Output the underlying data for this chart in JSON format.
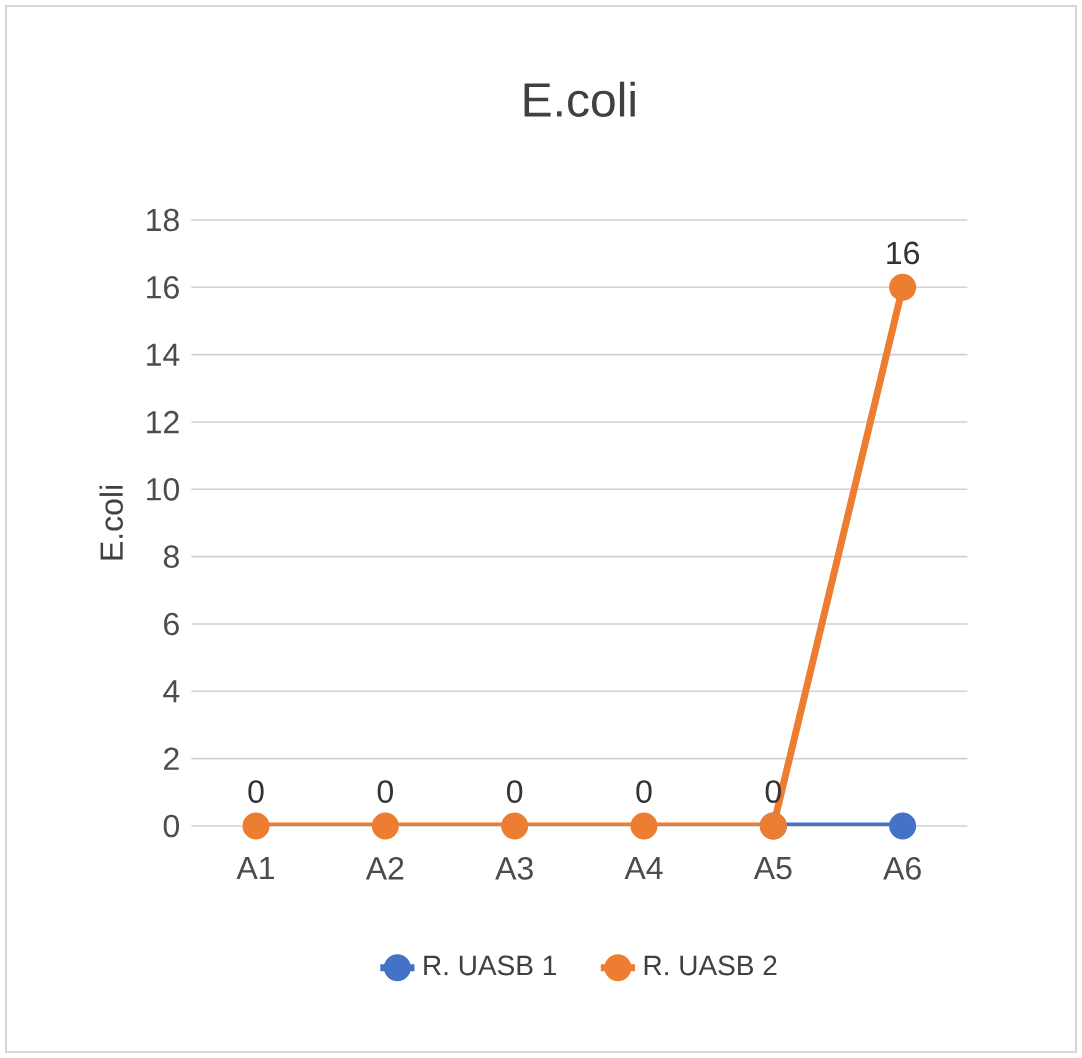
{
  "chart_data": {
    "type": "line",
    "title": "E.coli",
    "ylabel": "E.coli",
    "categories": [
      "A1",
      "A2",
      "A3",
      "A4",
      "A5",
      "A6"
    ],
    "series": [
      {
        "name": "R. UASB 1",
        "color": "#4472c4",
        "values": [
          null,
          null,
          null,
          null,
          0,
          0
        ]
      },
      {
        "name": "R. UASB 2",
        "color": "#ed7d31",
        "values": [
          0,
          0,
          0,
          0,
          0,
          16
        ],
        "value_labels": [
          "0",
          "0",
          "0",
          "0",
          "0",
          "16"
        ]
      }
    ],
    "ylim": [
      0,
      18
    ],
    "yticks": [
      0,
      2,
      4,
      6,
      8,
      10,
      12,
      14,
      16,
      18
    ],
    "grid": "y",
    "legend": "bottom",
    "marker": "circle",
    "line_style": "solid"
  }
}
